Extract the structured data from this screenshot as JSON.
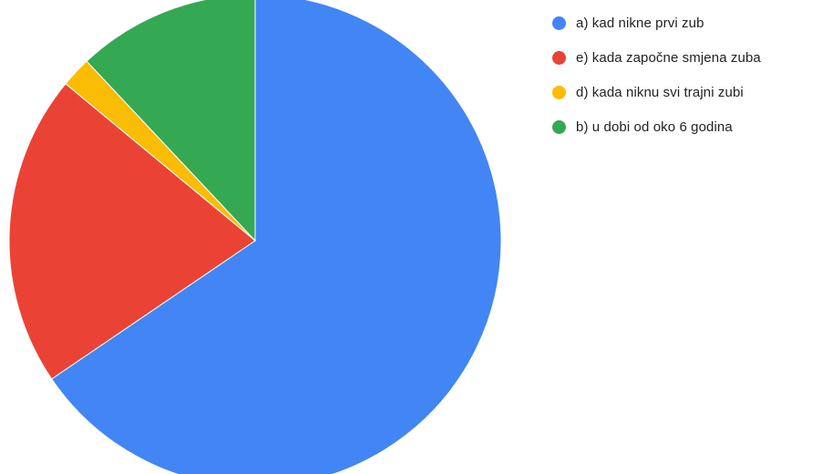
{
  "chart_data": {
    "type": "pie",
    "title": "",
    "slices": [
      {
        "label": "a) kad nikne prvi zub",
        "value": 65.5,
        "color": "#4285F4"
      },
      {
        "label": "e) kada započne smjena zuba",
        "value": 20.5,
        "color": "#EA4335"
      },
      {
        "label": "d) kada niknu svi trajni zubi",
        "value": 2.0,
        "color": "#FBBC04"
      },
      {
        "label": "b) u dobi od oko 6 godina",
        "value": 12.0,
        "color": "#34A853"
      }
    ],
    "start_angle_deg": 0,
    "direction": "clockwise",
    "legend_position": "right"
  }
}
